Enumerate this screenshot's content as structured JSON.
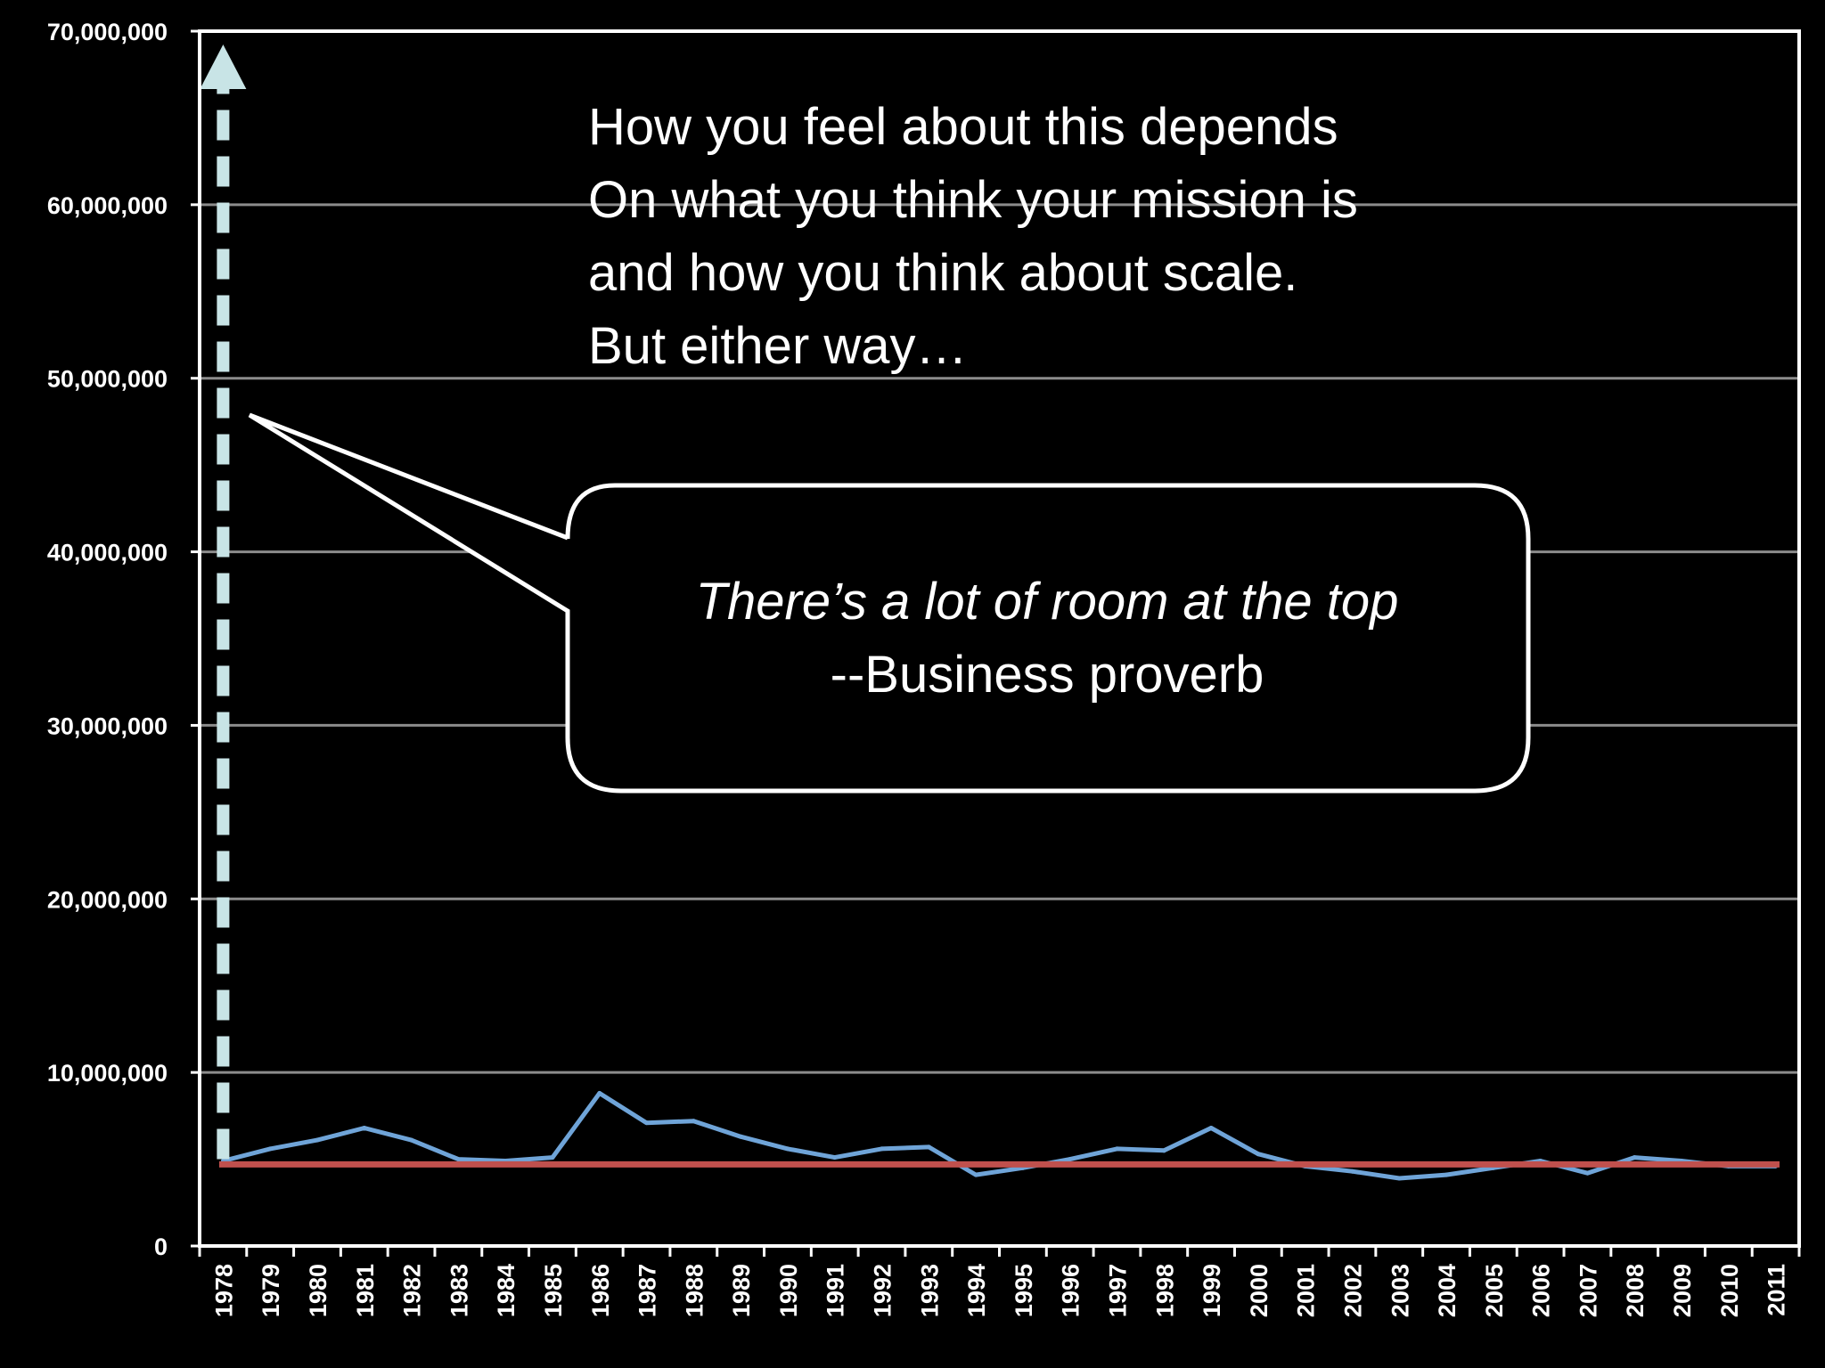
{
  "chart_data": {
    "type": "line",
    "title": "",
    "xlabel": "",
    "ylabel": "",
    "ylim": [
      0,
      70000000
    ],
    "y_ticks": [
      0,
      10000000,
      20000000,
      30000000,
      40000000,
      50000000,
      60000000,
      70000000
    ],
    "y_tick_labels": [
      "0",
      "10,000,000",
      "20,000,000",
      "30,000,000",
      "40,000,000",
      "50,000,000",
      "60,000,000",
      "70,000,000"
    ],
    "grid": true,
    "legend": "none",
    "categories": [
      "1978",
      "1979",
      "1980",
      "1981",
      "1982",
      "1983",
      "1984",
      "1985",
      "1986",
      "1987",
      "1988",
      "1989",
      "1990",
      "1991",
      "1992",
      "1993",
      "1994",
      "1995",
      "1996",
      "1997",
      "1998",
      "1999",
      "2000",
      "2001",
      "2002",
      "2003",
      "2004",
      "2005",
      "2006",
      "2007",
      "2008",
      "2009",
      "2010",
      "2011"
    ],
    "series": [
      {
        "color": "#6fa4d8",
        "values": [
          4900000,
          5600000,
          6100000,
          6800000,
          6100000,
          5000000,
          4900000,
          5100000,
          8800000,
          7100000,
          7200000,
          6300000,
          5600000,
          5100000,
          5600000,
          5700000,
          4100000,
          4500000,
          5000000,
          5600000,
          5500000,
          6800000,
          5300000,
          4600000,
          4300000,
          3900000,
          4100000,
          4500000,
          4900000,
          4200000,
          5100000,
          4900000,
          4600000,
          4600000
        ]
      }
    ],
    "reference_lines": [
      {
        "color": "#c0504d",
        "value": 4700000
      }
    ],
    "arrow": {
      "color": "#c8e4e6",
      "style": "dashed",
      "category": "1978"
    }
  },
  "annotations": {
    "top_note": [
      "How you feel about this depends",
      "On what you think your mission is",
      "and how you think about scale.",
      "But either way…"
    ],
    "callout": {
      "quote": "There’s a lot of room at the top",
      "attribution": "--Business proverb"
    }
  },
  "colors": {
    "background": "#000000",
    "axis": "#ffffff",
    "grid": "#8c8c8c",
    "text": "#ffffff"
  }
}
